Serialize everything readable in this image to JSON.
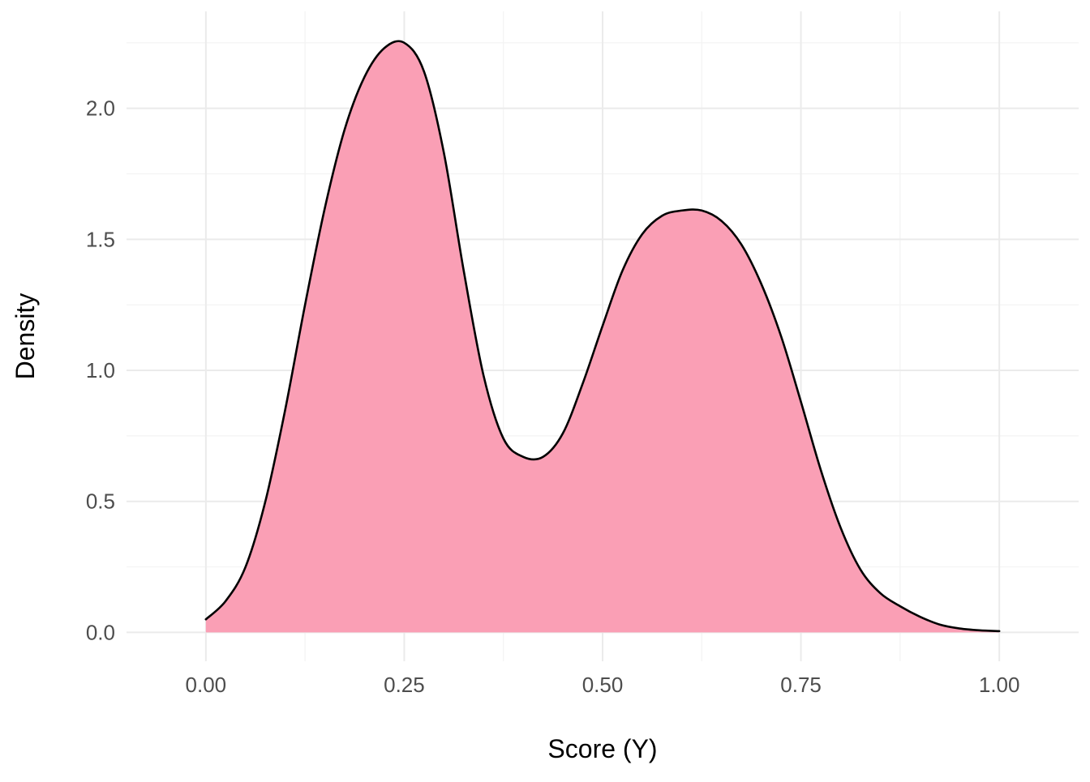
{
  "chart_data": {
    "type": "area",
    "title": "",
    "xlabel": "Score (Y)",
    "ylabel": "Density",
    "xlim": [
      -0.1,
      1.1
    ],
    "ylim": [
      -0.11,
      2.37
    ],
    "x_ticks": [
      0,
      0.25,
      0.5,
      0.75,
      1.0
    ],
    "x_tick_labels": [
      "0.00",
      "0.25",
      "0.50",
      "0.75",
      "1.00"
    ],
    "y_ticks": [
      0,
      0.5,
      1.0,
      1.5,
      2.0
    ],
    "y_tick_labels": [
      "0.0",
      "0.5",
      "1.0",
      "1.5",
      "2.0"
    ],
    "grid": true,
    "legend": "none",
    "series": [
      {
        "fill_color": "#FA9FB5",
        "line_color": "#000000",
        "x": [
          0.0,
          0.025,
          0.05,
          0.075,
          0.1,
          0.125,
          0.15,
          0.175,
          0.2,
          0.225,
          0.25,
          0.275,
          0.3,
          0.325,
          0.35,
          0.375,
          0.4,
          0.425,
          0.45,
          0.475,
          0.5,
          0.525,
          0.55,
          0.575,
          0.6,
          0.625,
          0.65,
          0.675,
          0.7,
          0.725,
          0.75,
          0.775,
          0.8,
          0.825,
          0.85,
          0.875,
          0.9,
          0.925,
          0.95,
          0.975,
          1.0
        ],
        "y": [
          0.05,
          0.12,
          0.25,
          0.5,
          0.85,
          1.25,
          1.62,
          1.92,
          2.12,
          2.23,
          2.25,
          2.14,
          1.83,
          1.38,
          0.98,
          0.74,
          0.67,
          0.67,
          0.76,
          0.95,
          1.17,
          1.38,
          1.52,
          1.59,
          1.61,
          1.61,
          1.57,
          1.48,
          1.33,
          1.13,
          0.88,
          0.62,
          0.4,
          0.24,
          0.15,
          0.1,
          0.06,
          0.03,
          0.015,
          0.008,
          0.005
        ]
      }
    ]
  }
}
